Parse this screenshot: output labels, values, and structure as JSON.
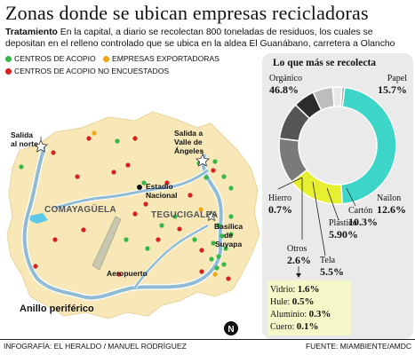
{
  "title": "Zonas donde se ubican empresas recicladoras",
  "subtitle_bold": "Tratamiento",
  "subtitle_text": " En la capital, a diario se recolectan 800 toneladas de residuos, los cuales se depositan en el relleno controlado que se ubica en la aldea El Guanábano, carretera a Olancho",
  "legend": {
    "acopio": {
      "label": "CENTROS DE ACOPIO",
      "color": "#35b845"
    },
    "exportadoras": {
      "label": "EMPRESAS EXPORTADORAS",
      "color": "#f2a515"
    },
    "no_encuestados": {
      "label": "CENTROS DE ACOPIO NO ENCUESTADOS",
      "color": "#d82020"
    }
  },
  "map": {
    "labels": {
      "salida_norte": "Salida\nal norte",
      "salida_valle": "Salida a\nValle de\nÁngeles",
      "estadio": "Estadio\nNacional",
      "basilica": "Basílica\nde\nSuyapa",
      "aeropuerto": "Aeropuerto",
      "anillo": "Anillo periférico",
      "comayaguela": "COMAYAGÜELA",
      "tegucigalpa": "TEGUCIGALPA",
      "north": "N"
    },
    "colors": {
      "land": "#f8e8b8",
      "road": "#8fbcd4",
      "water": "#5bc8e8"
    }
  },
  "chart_data": {
    "type": "pie",
    "title": "Lo que más se recolecta",
    "categories": [
      "Orgánico",
      "Papel",
      "Nailon",
      "Cartón",
      "Plástico",
      "Tela",
      "Otros",
      "Hierro"
    ],
    "values": [
      46.8,
      15.7,
      12.6,
      10.3,
      5.9,
      5.5,
      2.6,
      0.7
    ],
    "labels_pct": [
      "46.8%",
      "15.7%",
      "12.6%",
      "10.3%",
      "5.90%",
      "5.5%",
      "2.6%",
      "0.7%"
    ],
    "colors": [
      "#3dd5c8",
      "#e6f030",
      "#7a7a7a",
      "#555555",
      "#2c2c2c",
      "#bdbdbd",
      "#e8e8e8",
      "#9a9a9a"
    ]
  },
  "otros_breakdown": [
    {
      "label": "Vidrio:",
      "value": "1.6%"
    },
    {
      "label": "Hule:",
      "value": "0.5%"
    },
    {
      "label": "Aluminio:",
      "value": "0.3%"
    },
    {
      "label": "Cuero:",
      "value": "0.1%"
    }
  ],
  "footer": {
    "credit": "INFOGRAFÍA: EL HERALDO / MANUEL RODRÍGUEZ",
    "source": "FUENTE: MIAMBIENTE/AMDC"
  }
}
